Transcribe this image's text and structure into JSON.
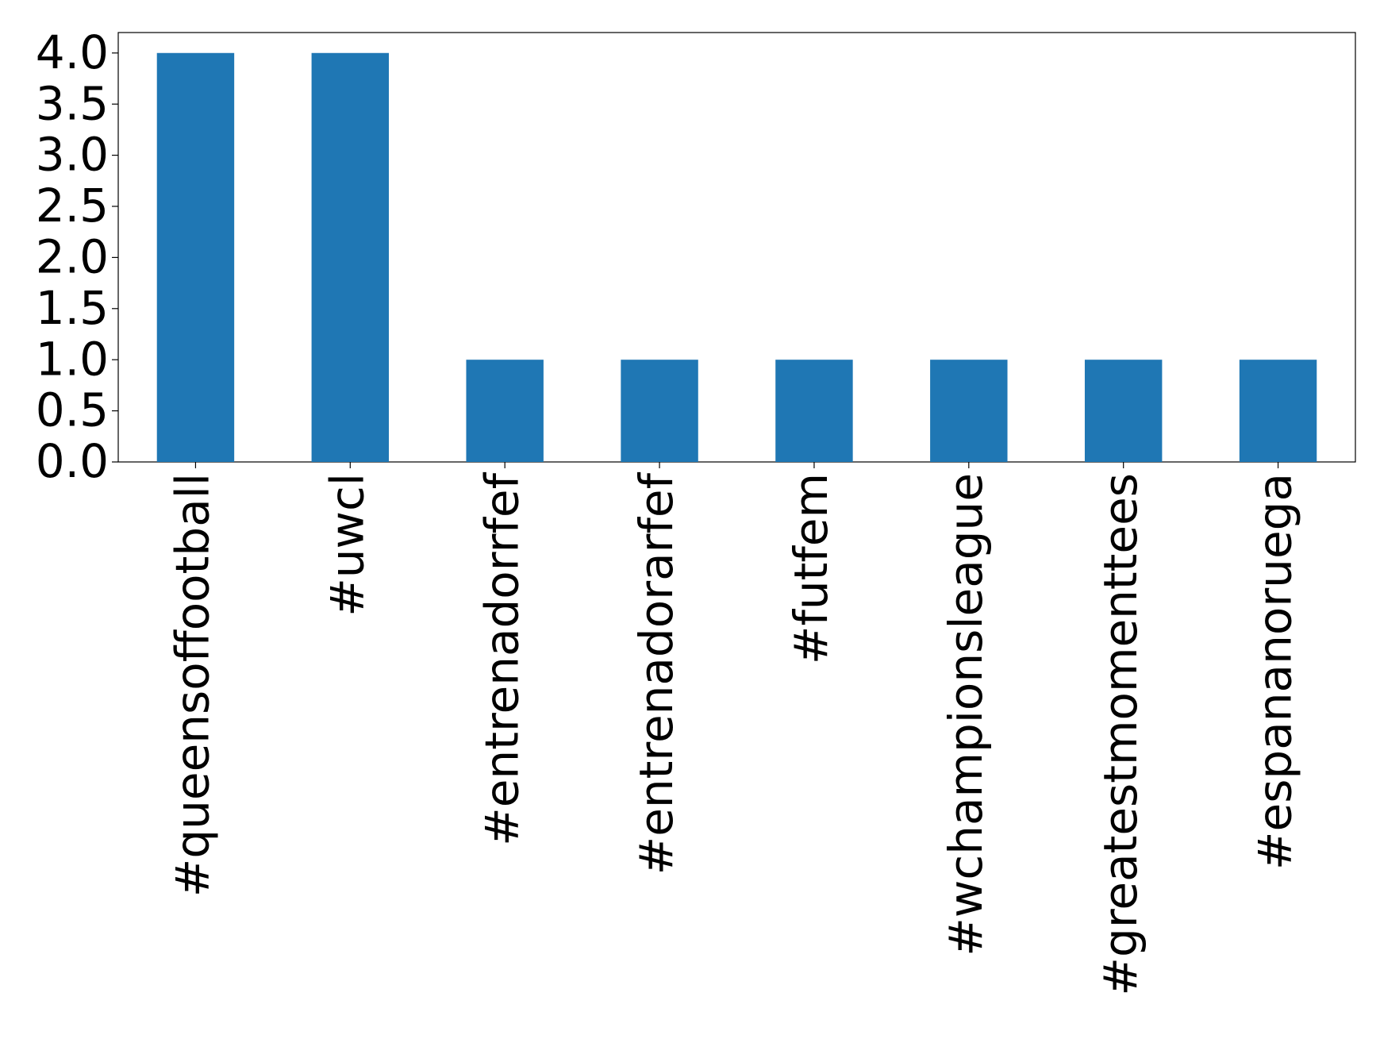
{
  "chart_data": {
    "type": "bar",
    "categories": [
      "#queensoffootball",
      "#uwcl",
      "#entrenadorrfef",
      "#entrenadorarfef",
      "#futfem",
      "#wchampionsleague",
      "#greatestmomenttees",
      "#espananoruega"
    ],
    "values": [
      4,
      4,
      1,
      1,
      1,
      1,
      1,
      1
    ],
    "color": "#1f77b4",
    "ylim": [
      0,
      4.2
    ],
    "yticks": [
      {
        "value": 0,
        "label": "0.0"
      },
      {
        "value": 0.5,
        "label": "0.5"
      },
      {
        "value": 1,
        "label": "1.0"
      },
      {
        "value": 1.5,
        "label": "1.5"
      },
      {
        "value": 2,
        "label": "2.0"
      },
      {
        "value": 2.5,
        "label": "2.5"
      },
      {
        "value": 3,
        "label": "3.0"
      },
      {
        "value": 3.5,
        "label": "3.5"
      },
      {
        "value": 4,
        "label": "4.0"
      }
    ],
    "grid": false
  }
}
